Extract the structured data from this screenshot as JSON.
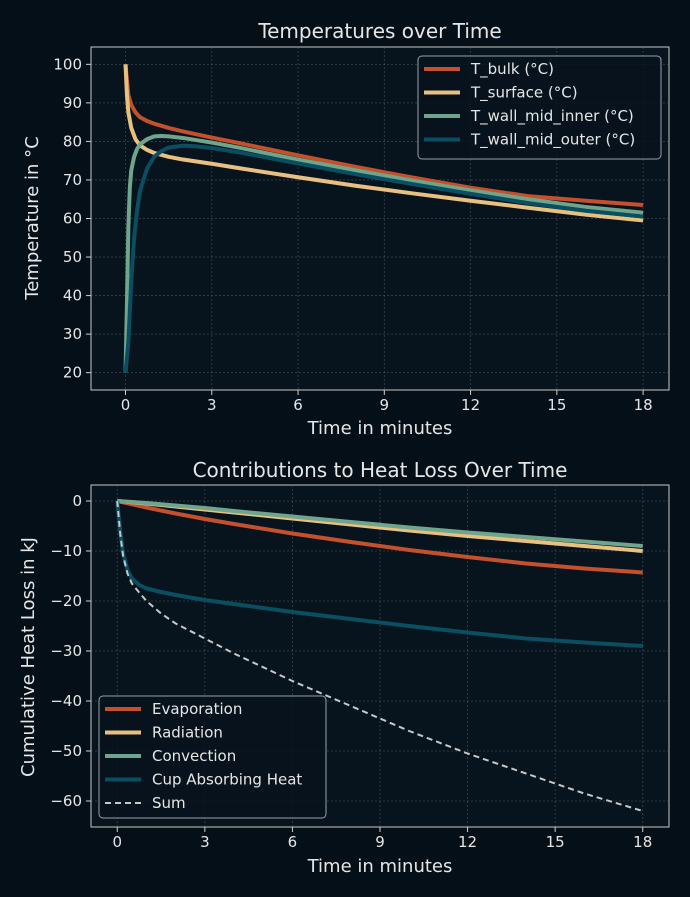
{
  "chart_data": [
    {
      "type": "line",
      "title": "Temperatures over Time",
      "xlabel": "Time in minutes",
      "ylabel": "Temperature in °C",
      "xlim": [
        -1.2,
        18.9
      ],
      "ylim": [
        15.5,
        104.5
      ],
      "xticks": [
        0,
        3,
        6,
        9,
        12,
        15,
        18
      ],
      "yticks": [
        20,
        30,
        40,
        50,
        60,
        70,
        80,
        90,
        100
      ],
      "grid": true,
      "legend_position": "top-right",
      "series": [
        {
          "name": "T_bulk (°C)",
          "color": "#c4502c",
          "width": 4,
          "x": [
            0,
            0.1,
            0.2,
            0.35,
            0.5,
            0.75,
            1.0,
            1.5,
            2.0,
            3.0,
            4.0,
            6.0,
            8.0,
            10.0,
            12.0,
            14.0,
            16.0,
            18.0
          ],
          "y": [
            100,
            92,
            89.5,
            87.5,
            86.3,
            85.3,
            84.6,
            83.5,
            82.6,
            81.0,
            79.5,
            76.4,
            73.4,
            70.6,
            68.0,
            65.8,
            64.6,
            63.5
          ]
        },
        {
          "name": "T_surface (°C)",
          "color": "#e8c07f",
          "width": 4,
          "x": [
            0,
            0.05,
            0.1,
            0.2,
            0.35,
            0.5,
            0.75,
            1.0,
            1.5,
            2.0,
            3.0,
            4.0,
            6.0,
            8.0,
            10.0,
            12.0,
            14.0,
            16.0,
            18.0
          ],
          "y": [
            100,
            92,
            87.5,
            83.5,
            80.5,
            79.0,
            77.8,
            77.0,
            76.0,
            75.3,
            74.2,
            73.0,
            70.7,
            68.5,
            66.5,
            64.6,
            62.8,
            61.0,
            59.5
          ]
        },
        {
          "name": "T_wall_mid_inner (°C)",
          "color": "#6fa58c",
          "width": 4,
          "x": [
            0,
            0.05,
            0.1,
            0.15,
            0.2,
            0.3,
            0.4,
            0.5,
            0.75,
            1.0,
            1.25,
            1.5,
            2.0,
            3.0,
            4.0,
            6.0,
            8.0,
            10.0,
            12.0,
            14.0,
            16.0,
            18.0
          ],
          "y": [
            20,
            38,
            58,
            68,
            72.5,
            76,
            78,
            79.2,
            80.6,
            81.3,
            81.4,
            81.3,
            80.9,
            79.7,
            78.3,
            75.3,
            72.5,
            69.8,
            67.3,
            65.0,
            63.0,
            61.5
          ]
        },
        {
          "name": "T_wall_mid_outer (°C)",
          "color": "#0a4e61",
          "width": 4,
          "x": [
            0,
            0.1,
            0.2,
            0.3,
            0.4,
            0.5,
            0.75,
            1.0,
            1.25,
            1.5,
            2.0,
            2.5,
            3.0,
            4.0,
            6.0,
            8.0,
            10.0,
            12.0,
            14.0,
            16.0,
            18.0
          ],
          "y": [
            20,
            28,
            44,
            55,
            62,
            67,
            73,
            76,
            77.5,
            78.4,
            78.9,
            78.7,
            78.3,
            77.1,
            74.3,
            71.5,
            68.9,
            66.4,
            64.0,
            62.0,
            60.5
          ]
        }
      ]
    },
    {
      "type": "line",
      "title": "Contributions to Heat Loss Over Time",
      "xlabel": "Time in minutes",
      "ylabel": "Cumulative Heat Loss in kJ",
      "xlim": [
        -0.9,
        18.9
      ],
      "ylim": [
        -65.2,
        3.2
      ],
      "xticks": [
        0,
        3,
        6,
        9,
        12,
        15,
        18
      ],
      "yticks": [
        0,
        -10,
        -20,
        -30,
        -40,
        -50,
        -60
      ],
      "grid": true,
      "legend_position": "bottom-left",
      "series": [
        {
          "name": "Evaporation",
          "color": "#c4502c",
          "width": 4,
          "dash": "",
          "x": [
            0,
            1,
            2,
            3,
            4,
            6,
            8,
            10,
            12,
            14,
            16,
            18
          ],
          "y": [
            0,
            -1.3,
            -2.5,
            -3.6,
            -4.6,
            -6.5,
            -8.2,
            -9.8,
            -11.2,
            -12.5,
            -13.5,
            -14.3
          ]
        },
        {
          "name": "Radiation",
          "color": "#e8c07f",
          "width": 4,
          "dash": "",
          "x": [
            0,
            1,
            2,
            3,
            4,
            6,
            8,
            10,
            12,
            14,
            16,
            18
          ],
          "y": [
            0,
            -0.5,
            -1.1,
            -1.7,
            -2.3,
            -3.5,
            -4.7,
            -5.9,
            -7.0,
            -8.0,
            -9.0,
            -10.0
          ]
        },
        {
          "name": "Convection",
          "color": "#6fa58c",
          "width": 4,
          "dash": "",
          "x": [
            0,
            1,
            2,
            3,
            4,
            6,
            8,
            10,
            12,
            14,
            16,
            18
          ],
          "y": [
            0,
            -0.4,
            -0.9,
            -1.4,
            -2.0,
            -3.1,
            -4.2,
            -5.3,
            -6.3,
            -7.2,
            -8.1,
            -9.0
          ]
        },
        {
          "name": "Cup Absorbing Heat",
          "color": "#0a4e61",
          "width": 4,
          "dash": "",
          "x": [
            0,
            0.1,
            0.2,
            0.35,
            0.5,
            0.75,
            1.0,
            1.5,
            2.0,
            3.0,
            4.0,
            6.0,
            8.0,
            10.0,
            12.0,
            14.0,
            16.0,
            18.0
          ],
          "y": [
            0,
            -6,
            -10.5,
            -13.8,
            -15.5,
            -16.8,
            -17.5,
            -18.2,
            -18.8,
            -19.8,
            -20.6,
            -22.2,
            -23.6,
            -25.0,
            -26.3,
            -27.5,
            -28.3,
            -29.0
          ]
        },
        {
          "name": "Sum",
          "color": "#c8c8c8",
          "width": 2,
          "dash": "6,4",
          "x": [
            0,
            0.1,
            0.2,
            0.35,
            0.5,
            0.75,
            1.0,
            1.5,
            2.0,
            3.0,
            4.0,
            6.0,
            8.0,
            10.0,
            12.0,
            14.0,
            16.0,
            18.0
          ],
          "y": [
            0,
            -6.5,
            -11,
            -14.5,
            -16.5,
            -18.3,
            -20,
            -22.5,
            -24.5,
            -27.5,
            -30.5,
            -36.0,
            -41.0,
            -46.0,
            -50.5,
            -54.5,
            -58.5,
            -62.0
          ]
        }
      ]
    }
  ]
}
